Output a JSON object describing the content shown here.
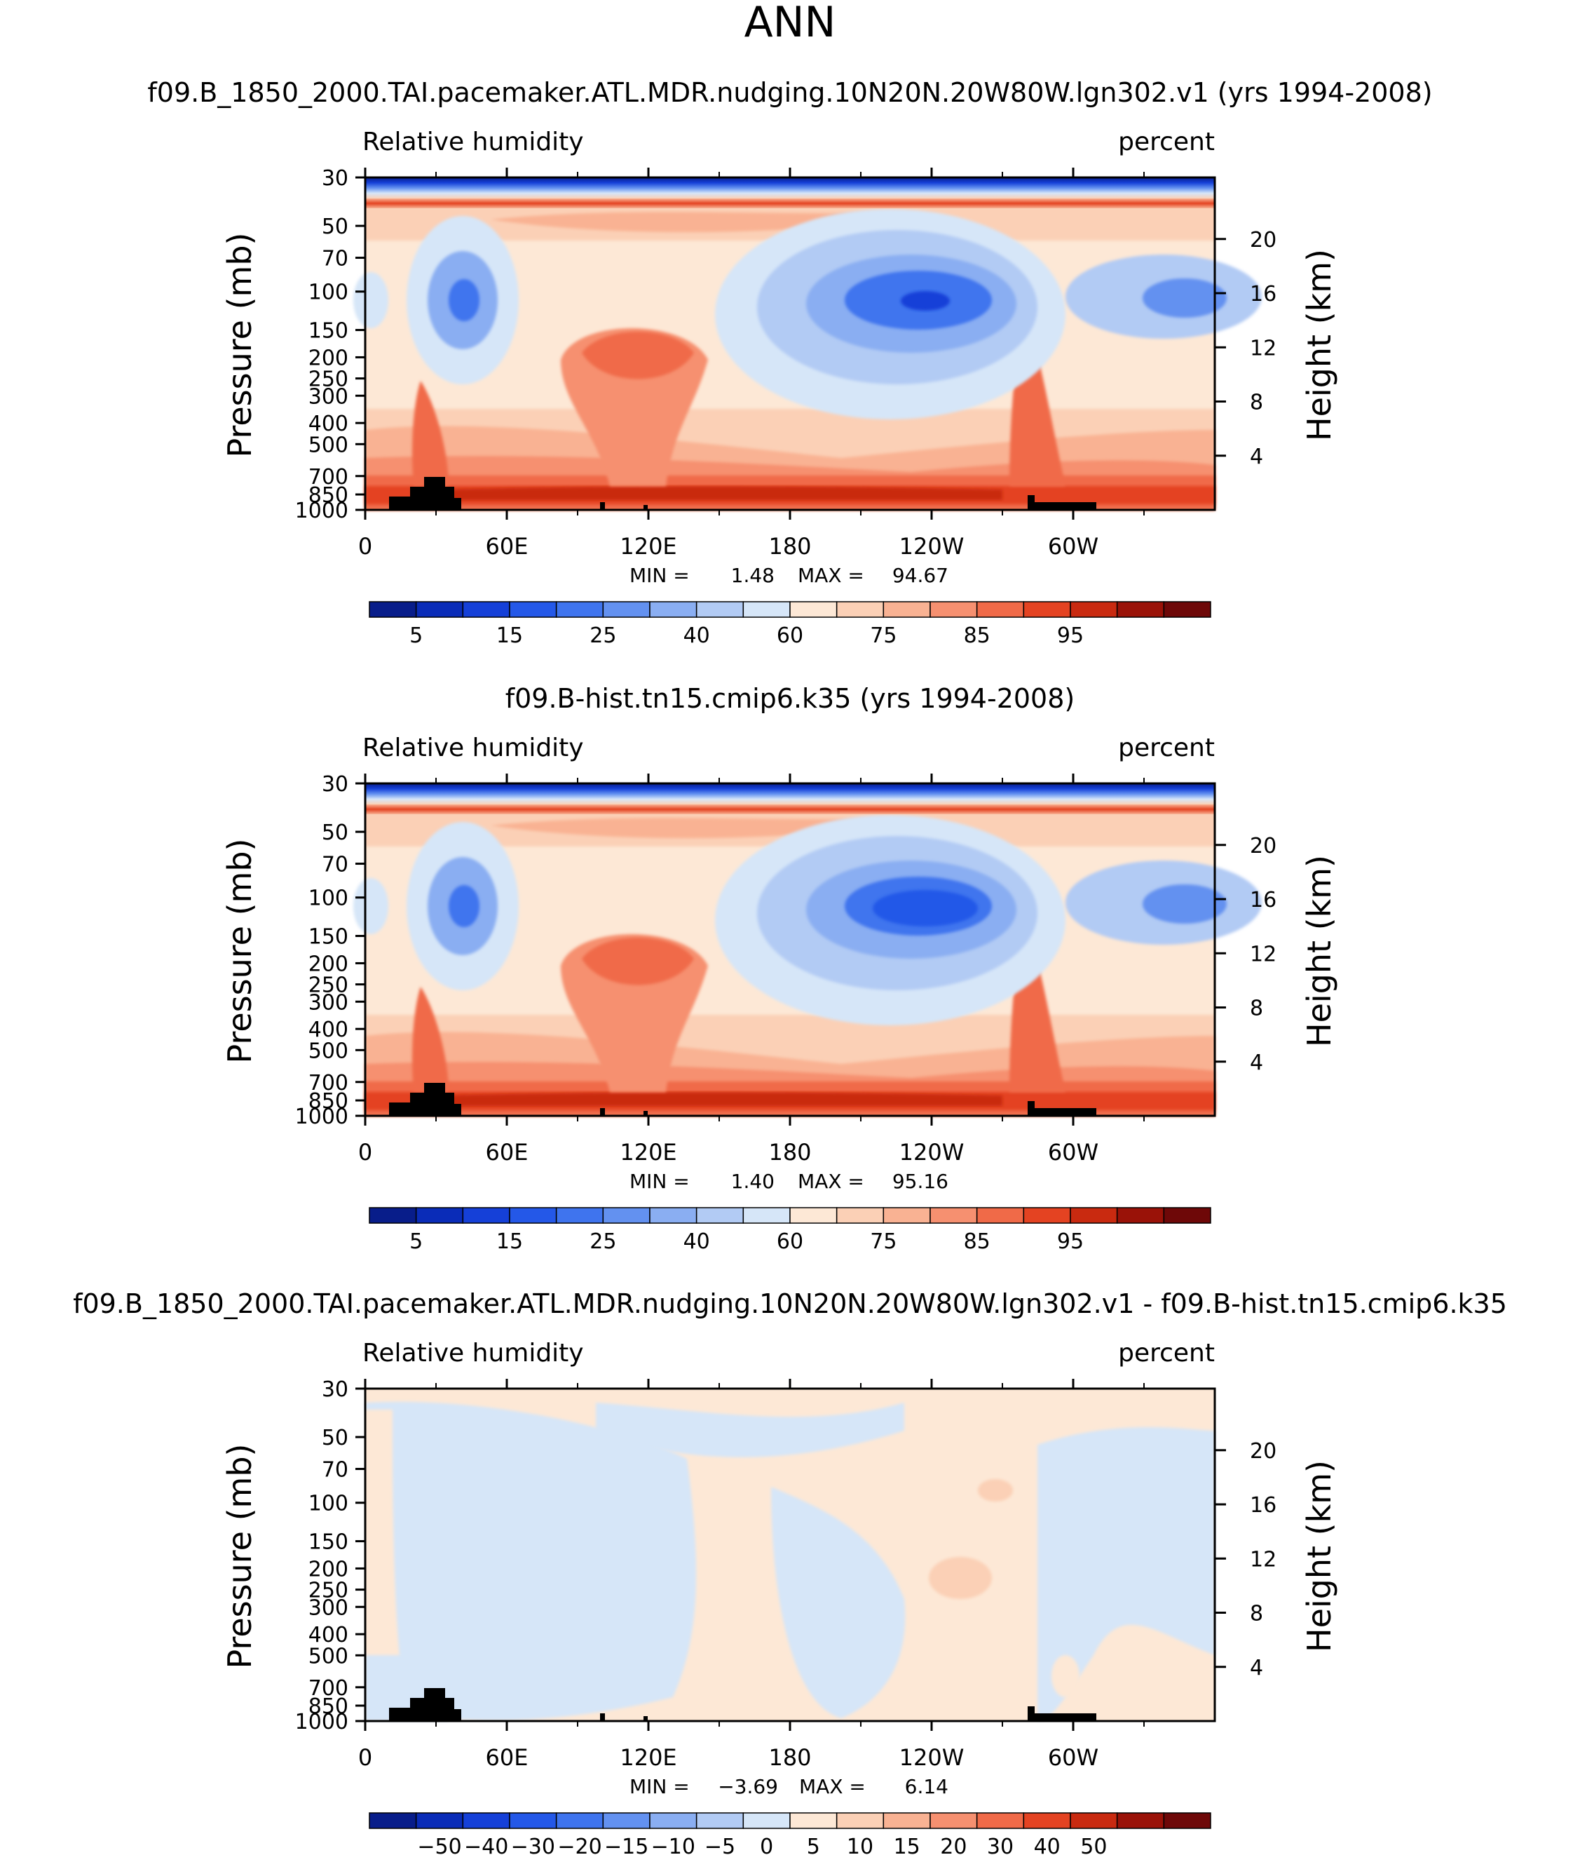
{
  "figure": {
    "title": "ANN"
  },
  "chart_data": [
    {
      "type": "heatmap",
      "title": "f09.B_1850_2000.TAI.pacemaker.ATL.MDR.nudging.10N20N.20W80W.lgn302.v1 (yrs 1994-2008)",
      "left_label": "Relative  humidity",
      "right_label": "percent",
      "ylabel": "Pressure  (mb)",
      "y2label": "Height  (km)",
      "x_ticks": [
        "0",
        "60E",
        "120E",
        "180",
        "120W",
        "60W"
      ],
      "y_ticks": [
        "30",
        "50",
        "70",
        "100",
        "150",
        "200",
        "250",
        "300",
        "400",
        "500",
        "700",
        "850",
        "1000"
      ],
      "y2_ticks": [
        "20",
        "16",
        "12",
        "8",
        "4"
      ],
      "stats": {
        "min_label": "MIN =",
        "min": "1.48",
        "max_label": "MAX =",
        "max": "94.67"
      },
      "colorbar_labels": [
        "5",
        "15",
        "25",
        "40",
        "60",
        "75",
        "85",
        "95"
      ],
      "levels": [
        5,
        10,
        15,
        20,
        25,
        30,
        40,
        50,
        60,
        65,
        70,
        75,
        80,
        85,
        90,
        95
      ]
    },
    {
      "type": "heatmap",
      "title": "f09.B-hist.tn15.cmip6.k35 (yrs 1994-2008)",
      "left_label": "Relative  humidity",
      "right_label": "percent",
      "ylabel": "Pressure  (mb)",
      "y2label": "Height  (km)",
      "x_ticks": [
        "0",
        "60E",
        "120E",
        "180",
        "120W",
        "60W"
      ],
      "y_ticks": [
        "30",
        "50",
        "70",
        "100",
        "150",
        "200",
        "250",
        "300",
        "400",
        "500",
        "700",
        "850",
        "1000"
      ],
      "y2_ticks": [
        "20",
        "16",
        "12",
        "8",
        "4"
      ],
      "stats": {
        "min_label": "MIN =",
        "min": "1.40",
        "max_label": "MAX =",
        "max": "95.16"
      },
      "colorbar_labels": [
        "5",
        "15",
        "25",
        "40",
        "60",
        "75",
        "85",
        "95"
      ],
      "levels": [
        5,
        10,
        15,
        20,
        25,
        30,
        40,
        50,
        60,
        65,
        70,
        75,
        80,
        85,
        90,
        95
      ]
    },
    {
      "type": "heatmap",
      "title": "f09.B_1850_2000.TAI.pacemaker.ATL.MDR.nudging.10N20N.20W80W.lgn302.v1 - f09.B-hist.tn15.cmip6.k35",
      "left_label": "Relative  humidity",
      "right_label": "percent",
      "ylabel": "Pressure  (mb)",
      "y2label": "Height  (km)",
      "x_ticks": [
        "0",
        "60E",
        "120E",
        "180",
        "120W",
        "60W"
      ],
      "y_ticks": [
        "30",
        "50",
        "70",
        "100",
        "150",
        "200",
        "250",
        "300",
        "400",
        "500",
        "700",
        "850",
        "1000"
      ],
      "y2_ticks": [
        "20",
        "16",
        "12",
        "8",
        "4"
      ],
      "stats": {
        "min_label": "MIN =",
        "min": "−3.69",
        "max_label": "MAX =",
        "max": "6.14"
      },
      "colorbar_labels": [
        "−50",
        "−40",
        "−30",
        "−20",
        "−15",
        "−10",
        "−5",
        "0",
        "5",
        "10",
        "15",
        "20",
        "30",
        "40",
        "50"
      ],
      "levels": [
        -50,
        -40,
        -30,
        -20,
        -15,
        -10,
        -5,
        0,
        5,
        10,
        15,
        20,
        30,
        40,
        50
      ]
    }
  ],
  "colors": {
    "palette": [
      "#081d8a",
      "#0a2cb8",
      "#1540d8",
      "#2458e8",
      "#3f74ee",
      "#6391f0",
      "#8aaef2",
      "#b2cbf4",
      "#d6e6f8",
      "#fde8d6",
      "#fbd0b6",
      "#f9b293",
      "#f69070",
      "#f06a48",
      "#e44322",
      "#c92a10",
      "#9a1208",
      "#6e0808"
    ],
    "diff_low": "#d6e6f8",
    "diff_high": "#fde8d6",
    "diff_pos": "#fbd0b6",
    "topography": "#000000",
    "stratosphere": "#0a2cb8"
  }
}
